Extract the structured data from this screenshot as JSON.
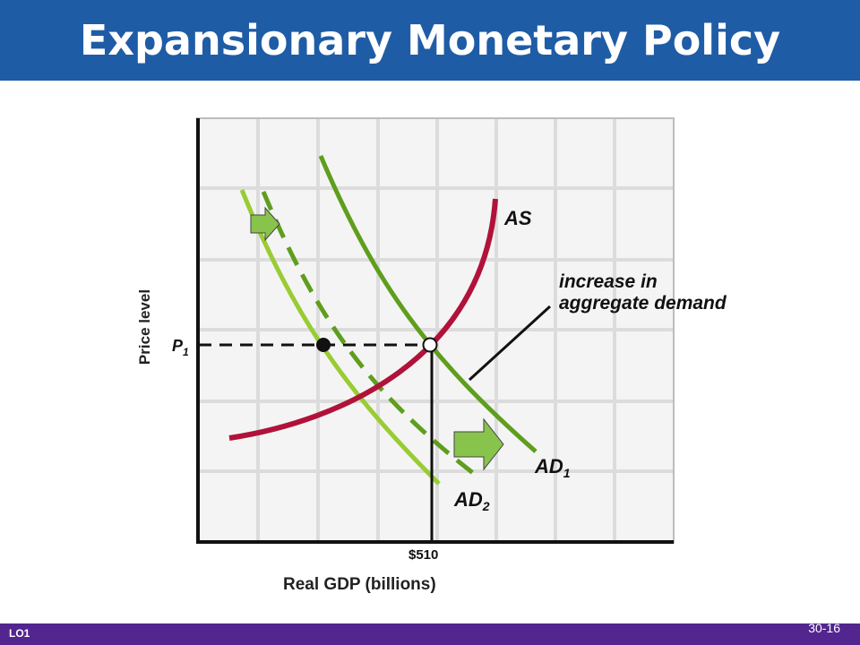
{
  "slide": {
    "title": "Expansionary Monetary Policy",
    "footer_left": "LO1",
    "footer_right": "30-16"
  },
  "diagram": {
    "y_axis_label": "Price level",
    "x_axis_label": "Real GDP (billions)",
    "curves": {
      "as_label": "AS",
      "ad1_label_main": "AD",
      "ad1_label_sub": "1",
      "ad2_label_main": "AD",
      "ad2_label_sub": "2"
    },
    "price_label_main": "P",
    "price_label_sub": "1",
    "gdp_value": "$510",
    "annotation_line1": "increase in",
    "annotation_line2": "aggregate demand",
    "colors": {
      "title_bar": "#1f5ca6",
      "footer_bar": "#52258f",
      "as_curve": "#b0123a",
      "ad_dark": "#5f9e1d",
      "ad_light": "#99cc33",
      "arrow_fill": "#88c34c"
    }
  }
}
